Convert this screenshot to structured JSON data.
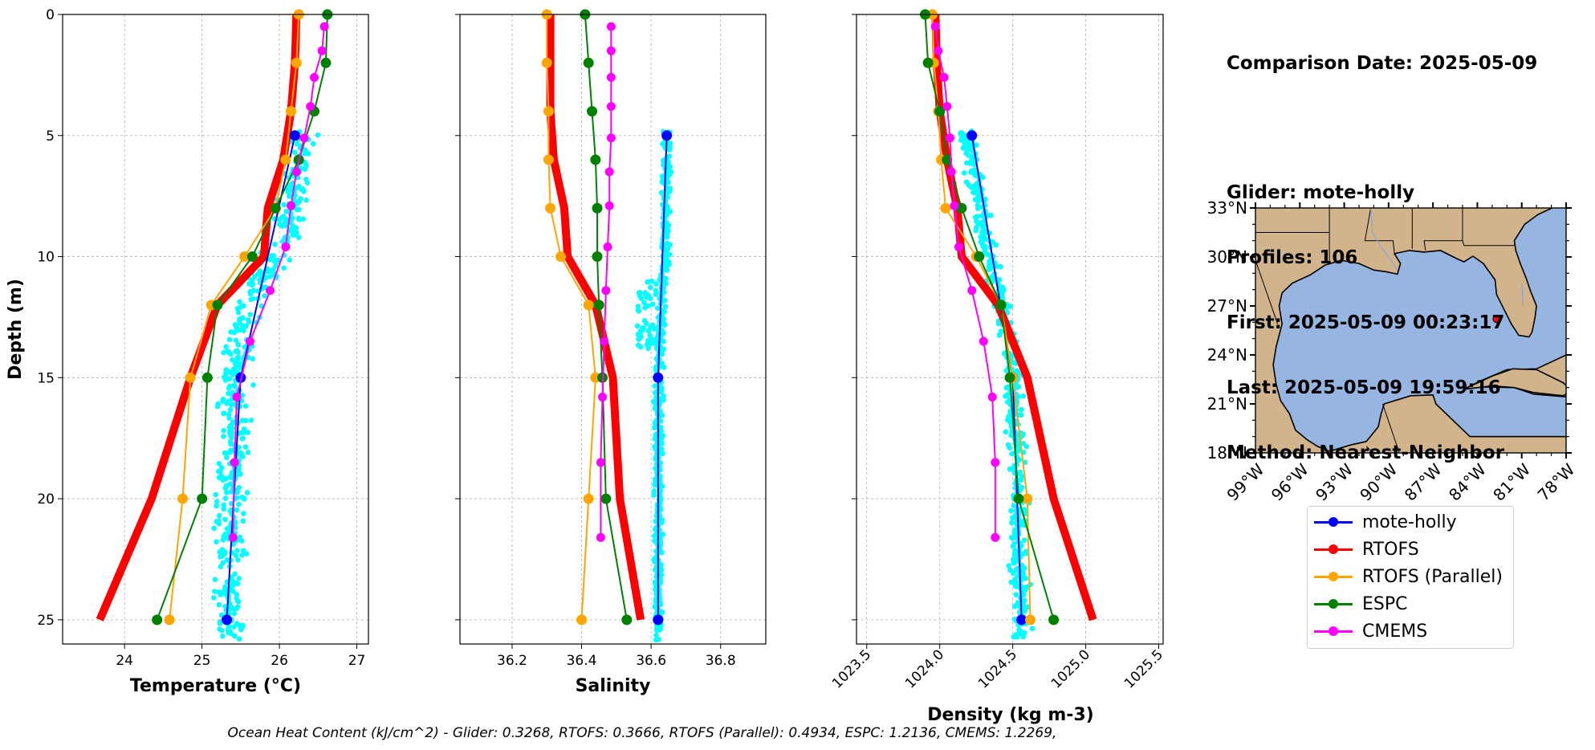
{
  "info": {
    "comparison_date": "Comparison Date: 2025-05-09",
    "glider": "Glider: mote-holly",
    "profiles": "Profiles: 106",
    "first": "First: 2025-05-09 00:23:17",
    "last": "Last: 2025-05-09 19:59:16",
    "method": "Method: Nearest-Neighbor"
  },
  "footer": "Ocean Heat Content (kJ/cm^2) - Glider: 0.3268,  RTOFS: 0.3666,  RTOFS (Parallel): 0.4934,  ESPC: 1.2136,  CMEMS: 1.2269,",
  "legend": [
    {
      "label": "mote-holly",
      "color": "#0000ff"
    },
    {
      "label": "RTOFS",
      "color": "#ff0000"
    },
    {
      "label": "RTOFS (Parallel)",
      "color": "#ffa500"
    },
    {
      "label": "ESPC",
      "color": "#008000"
    },
    {
      "label": "CMEMS",
      "color": "#ff00ff"
    }
  ],
  "colors": {
    "glider_points": "#00ffff",
    "mote-holly": "#0000ff",
    "RTOFS": "#ff0000",
    "RTOFS (Parallel)": "#ffa500",
    "ESPC": "#008000",
    "CMEMS": "#ff00ff",
    "land": "#d2b48c",
    "ocean": "#96b5e0",
    "glider_marker": "#ff0000"
  },
  "chart_data": [
    {
      "type": "line",
      "xlabel": "Temperature (°C)",
      "ylabel": "Depth (m)",
      "xlim": [
        23.2,
        27.15
      ],
      "ylim": [
        26,
        0
      ],
      "xticks": [
        "24",
        "25",
        "26",
        "27"
      ],
      "yticks": [
        "0",
        "5",
        "10",
        "15",
        "20",
        "25"
      ],
      "grid": true,
      "glider_scatter": {
        "name": "mote-holly",
        "depth_range": [
          4.8,
          25.9
        ],
        "x_mean": [
          [
            5,
            26.35
          ],
          [
            7,
            26.2
          ],
          [
            9,
            26.1
          ],
          [
            10,
            25.95
          ],
          [
            11,
            25.75
          ],
          [
            12,
            25.6
          ],
          [
            13,
            25.5
          ],
          [
            15,
            25.45
          ],
          [
            20,
            25.38
          ],
          [
            25,
            25.35
          ]
        ],
        "x_spread": 0.18
      },
      "series": [
        {
          "name": "mote-holly",
          "depth": [
            5,
            15,
            25
          ],
          "values": [
            26.2,
            25.5,
            25.32
          ]
        },
        {
          "name": "RTOFS",
          "depth": [
            0,
            2,
            4,
            6,
            8,
            10,
            12,
            15,
            20,
            25
          ],
          "values": [
            26.22,
            26.2,
            26.15,
            26.05,
            25.85,
            25.8,
            25.2,
            24.85,
            24.35,
            23.68
          ]
        },
        {
          "name": "RTOFS (Parallel)",
          "depth": [
            0,
            2,
            4,
            6,
            8,
            10,
            12,
            15,
            20,
            25
          ],
          "values": [
            26.25,
            26.22,
            26.15,
            26.08,
            25.95,
            25.55,
            25.12,
            24.85,
            24.75,
            24.58
          ]
        },
        {
          "name": "ESPC",
          "depth": [
            0,
            2,
            4,
            6,
            8,
            10,
            12,
            15,
            20,
            25
          ],
          "values": [
            26.62,
            26.6,
            26.45,
            26.25,
            25.95,
            25.65,
            25.2,
            25.07,
            25.0,
            24.42
          ]
        },
        {
          "name": "CMEMS",
          "depth": [
            0.5,
            1.5,
            2.6,
            3.8,
            5.1,
            6.5,
            7.9,
            9.6,
            11.4,
            13.5,
            15.8,
            18.5,
            21.6
          ],
          "values": [
            26.58,
            26.55,
            26.45,
            26.4,
            26.32,
            26.22,
            26.15,
            26.08,
            25.88,
            25.62,
            25.45,
            25.42,
            25.4
          ]
        }
      ]
    },
    {
      "type": "line",
      "xlabel": "Salinity",
      "xlim": [
        36.05,
        36.93
      ],
      "ylim": [
        26,
        0
      ],
      "xticks": [
        "36.2",
        "36.4",
        "36.6",
        "36.8"
      ],
      "grid": true,
      "glider_scatter": {
        "name": "mote-holly",
        "depth_range": [
          4.8,
          25.9
        ],
        "x_mean": [
          [
            5,
            36.645
          ],
          [
            10,
            36.64
          ],
          [
            12,
            36.63
          ],
          [
            15,
            36.62
          ],
          [
            20,
            36.62
          ],
          [
            25,
            36.62
          ]
        ],
        "x_spread": 0.012
      },
      "series": [
        {
          "name": "mote-holly",
          "depth": [
            5,
            15,
            25
          ],
          "values": [
            36.645,
            36.62,
            36.62
          ]
        },
        {
          "name": "RTOFS",
          "depth": [
            0,
            2,
            4,
            6,
            8,
            10,
            12,
            15,
            20,
            25
          ],
          "values": [
            36.31,
            36.31,
            36.31,
            36.32,
            36.35,
            36.36,
            36.44,
            36.49,
            36.51,
            36.57
          ]
        },
        {
          "name": "RTOFS (Parallel)",
          "depth": [
            0,
            2,
            4,
            6,
            8,
            10,
            12,
            15,
            20,
            25
          ],
          "values": [
            36.3,
            36.3,
            36.305,
            36.305,
            36.31,
            36.34,
            36.42,
            36.44,
            36.42,
            36.4
          ]
        },
        {
          "name": "ESPC",
          "depth": [
            0,
            2,
            4,
            6,
            8,
            10,
            12,
            15,
            20,
            25
          ],
          "values": [
            36.41,
            36.42,
            36.43,
            36.44,
            36.445,
            36.445,
            36.45,
            36.46,
            36.47,
            36.53
          ]
        },
        {
          "name": "CMEMS",
          "depth": [
            0.5,
            1.5,
            2.6,
            3.8,
            5.1,
            6.5,
            7.9,
            9.6,
            11.4,
            13.5,
            15.8,
            18.5,
            21.6
          ],
          "values": [
            36.485,
            36.485,
            36.485,
            36.485,
            36.485,
            36.48,
            36.48,
            36.475,
            36.47,
            36.465,
            36.46,
            36.455,
            36.455
          ]
        }
      ]
    },
    {
      "type": "line",
      "xlabel": "Density (kg m-3)",
      "xlim": [
        1023.43,
        1025.53
      ],
      "ylim": [
        26,
        0
      ],
      "xticks": [
        "1023.5",
        "1024.0",
        "1024.5",
        "1025.0",
        "1025.5"
      ],
      "grid": true,
      "glider_scatter": {
        "name": "mote-holly",
        "depth_range": [
          4.8,
          25.9
        ],
        "x_mean": [
          [
            5,
            1024.18
          ],
          [
            7,
            1024.25
          ],
          [
            9,
            1024.3
          ],
          [
            11,
            1024.38
          ],
          [
            13,
            1024.45
          ],
          [
            15,
            1024.5
          ],
          [
            20,
            1024.54
          ],
          [
            25,
            1024.56
          ]
        ],
        "x_spread": 0.06
      },
      "series": [
        {
          "name": "mote-holly",
          "depth": [
            5,
            15,
            25
          ],
          "values": [
            1024.22,
            1024.5,
            1024.56
          ]
        },
        {
          "name": "RTOFS",
          "depth": [
            0,
            2,
            4,
            6,
            8,
            10,
            12,
            15,
            20,
            25
          ],
          "values": [
            1023.97,
            1023.98,
            1024.0,
            1024.05,
            1024.12,
            1024.15,
            1024.4,
            1024.6,
            1024.78,
            1025.05
          ]
        },
        {
          "name": "RTOFS (Parallel)",
          "depth": [
            0,
            2,
            4,
            6,
            8,
            10,
            12,
            15,
            20,
            25
          ],
          "values": [
            1023.95,
            1023.96,
            1023.99,
            1024.01,
            1024.04,
            1024.25,
            1024.42,
            1024.5,
            1024.6,
            1024.62
          ]
        },
        {
          "name": "ESPC",
          "depth": [
            0,
            2,
            4,
            6,
            8,
            10,
            12,
            15,
            20,
            25
          ],
          "values": [
            1023.9,
            1023.92,
            1024.0,
            1024.05,
            1024.15,
            1024.27,
            1024.42,
            1024.48,
            1024.54,
            1024.78
          ]
        },
        {
          "name": "CMEMS",
          "depth": [
            0.5,
            1.5,
            2.6,
            3.8,
            5.1,
            6.5,
            7.9,
            9.6,
            11.4,
            13.5,
            15.8,
            18.5,
            21.6
          ],
          "values": [
            1023.97,
            1023.99,
            1024.03,
            1024.05,
            1024.07,
            1024.08,
            1024.1,
            1024.13,
            1024.22,
            1024.3,
            1024.36,
            1024.38,
            1024.38
          ]
        }
      ]
    }
  ],
  "map": {
    "lon_range": [
      -99,
      -78
    ],
    "lat_range": [
      18,
      33
    ],
    "xticks": [
      "99°W",
      "96°W",
      "93°W",
      "90°W",
      "87°W",
      "84°W",
      "81°W",
      "78°W"
    ],
    "yticks": [
      "33°N",
      "30°N",
      "27°N",
      "24°N",
      "21°N",
      "18°N"
    ],
    "glider_position": {
      "lon": -82.7,
      "lat": 26.2
    }
  }
}
